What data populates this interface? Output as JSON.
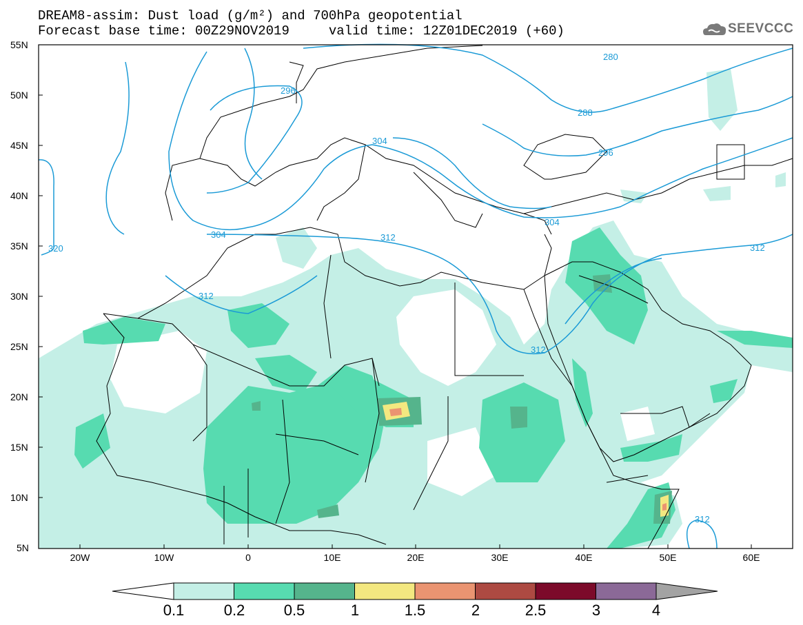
{
  "title": {
    "line1": "DREAM8-assim: Dust load (g/m²) and 700hPa geopotential",
    "line2": "Forecast base time: 00Z29NOV2019     valid time: 12Z01DEC2019 (+60)"
  },
  "logo": {
    "text": "SEEVCCC",
    "icon": "cloud-icon"
  },
  "axes": {
    "lat_labels": [
      "55N",
      "50N",
      "45N",
      "40N",
      "35N",
      "30N",
      "25N",
      "20N",
      "15N",
      "10N",
      "5N"
    ],
    "lon_labels": [
      "20W",
      "10W",
      "0",
      "10E",
      "20E",
      "30E",
      "40E",
      "50E",
      "60E"
    ]
  },
  "contours": {
    "color": "#1a9ad6",
    "labels": [
      "280",
      "296",
      "288",
      "304",
      "296",
      "304",
      "320",
      "312",
      "304",
      "312",
      "312",
      "312",
      "312"
    ]
  },
  "colorbar": {
    "colors": [
      "#c4efe6",
      "#57dbb0",
      "#55b48c",
      "#f3e880",
      "#ea9471",
      "#ad4a42",
      "#7c0a2a",
      "#8b6997",
      "#a3a3a3"
    ],
    "labels": [
      "0.1",
      "0.2",
      "0.5",
      "1",
      "1.5",
      "2",
      "2.5",
      "3",
      "4"
    ]
  }
}
